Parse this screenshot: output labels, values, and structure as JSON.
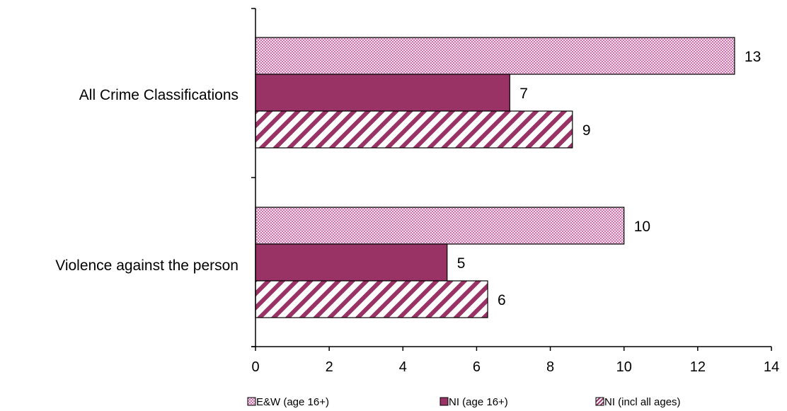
{
  "chart_data": {
    "type": "bar",
    "orientation": "horizontal",
    "categories": [
      "All Crime Classifications",
      "Violence against the person"
    ],
    "series": [
      {
        "name": "E&W (age 16+)",
        "values": [
          13,
          10
        ],
        "labels": [
          "13",
          "10"
        ],
        "color": "#e3a8cf",
        "pattern": "checker"
      },
      {
        "name": "NI (age 16+)",
        "values": [
          6.9,
          5.2
        ],
        "labels": [
          "7",
          "5"
        ],
        "color": "#993366",
        "pattern": "solid"
      },
      {
        "name": "NI (incl all ages)",
        "values": [
          8.6,
          6.3
        ],
        "labels": [
          "9",
          "6"
        ],
        "color": "#993366",
        "pattern": "diagonal-stripes"
      }
    ],
    "xlim": [
      0,
      14
    ],
    "xticks": [
      "0",
      "2",
      "4",
      "6",
      "8",
      "10",
      "12",
      "14"
    ],
    "title": "",
    "xlabel": "",
    "ylabel": "",
    "grid": false,
    "legend_position": "bottom"
  }
}
